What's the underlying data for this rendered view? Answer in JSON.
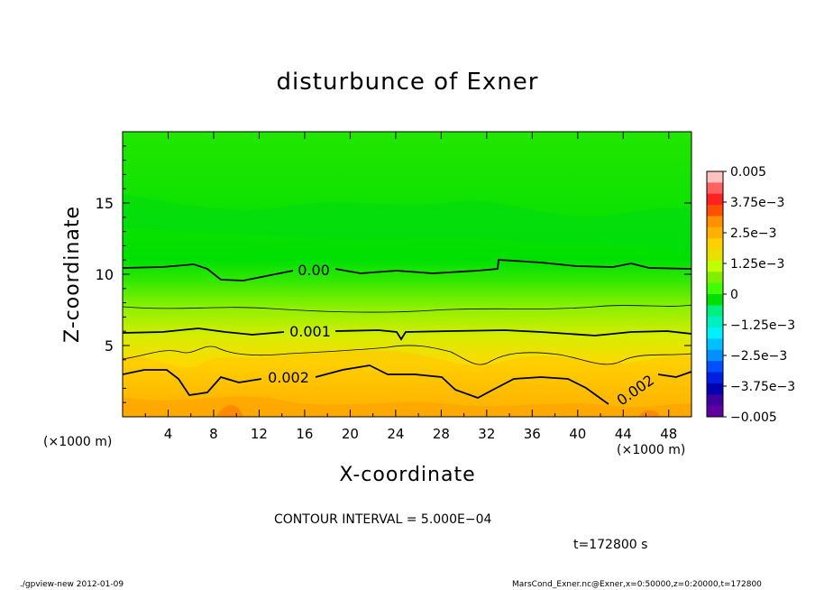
{
  "chart_data": {
    "type": "heatmap",
    "title": "disturbunce of Exner",
    "xlabel": "X-coordinate",
    "ylabel": "Z-coordinate",
    "x_unit_left": "(×1000 m)",
    "x_unit_right": "(×1000 m)",
    "xlim": [
      0,
      50
    ],
    "ylim": [
      0,
      20
    ],
    "x_ticks": [
      "4",
      "8",
      "12",
      "16",
      "20",
      "24",
      "28",
      "32",
      "36",
      "40",
      "44",
      "48"
    ],
    "y_ticks": [
      "5",
      "10",
      "15"
    ],
    "colorbar": {
      "range": [
        -0.005,
        0.005
      ],
      "labels": [
        "0.005",
        "3.75e−3",
        "2.5e−3",
        "1.25e−3",
        "0",
        "−1.25e−3",
        "−2.5e−3",
        "−3.75e−3",
        "−0.005"
      ],
      "colors": [
        "#ffc0c0",
        "#ff6060",
        "#ff2020",
        "#ff5000",
        "#ff9000",
        "#ffb000",
        "#ffd000",
        "#e8e000",
        "#c0ff00",
        "#80f000",
        "#40ff00",
        "#00e000",
        "#00f080",
        "#00f0c0",
        "#00f0ff",
        "#00c0ff",
        "#0090ff",
        "#0050ff",
        "#0020e0",
        "#0000b0",
        "#4000a0",
        "#6000a0"
      ]
    },
    "contour_labels": [
      "0.00",
      "0.001",
      "0.002",
      "0.002"
    ],
    "grid": false
  },
  "contour_interval": "CONTOUR INTERVAL = 5.000E−04",
  "time_label": "t=172800  s",
  "footer_left": "./gpview-new   2012-01-09",
  "footer_right": "MarsCond_Exner.nc@Exner,x=0:50000,z=0:20000,t=172800"
}
